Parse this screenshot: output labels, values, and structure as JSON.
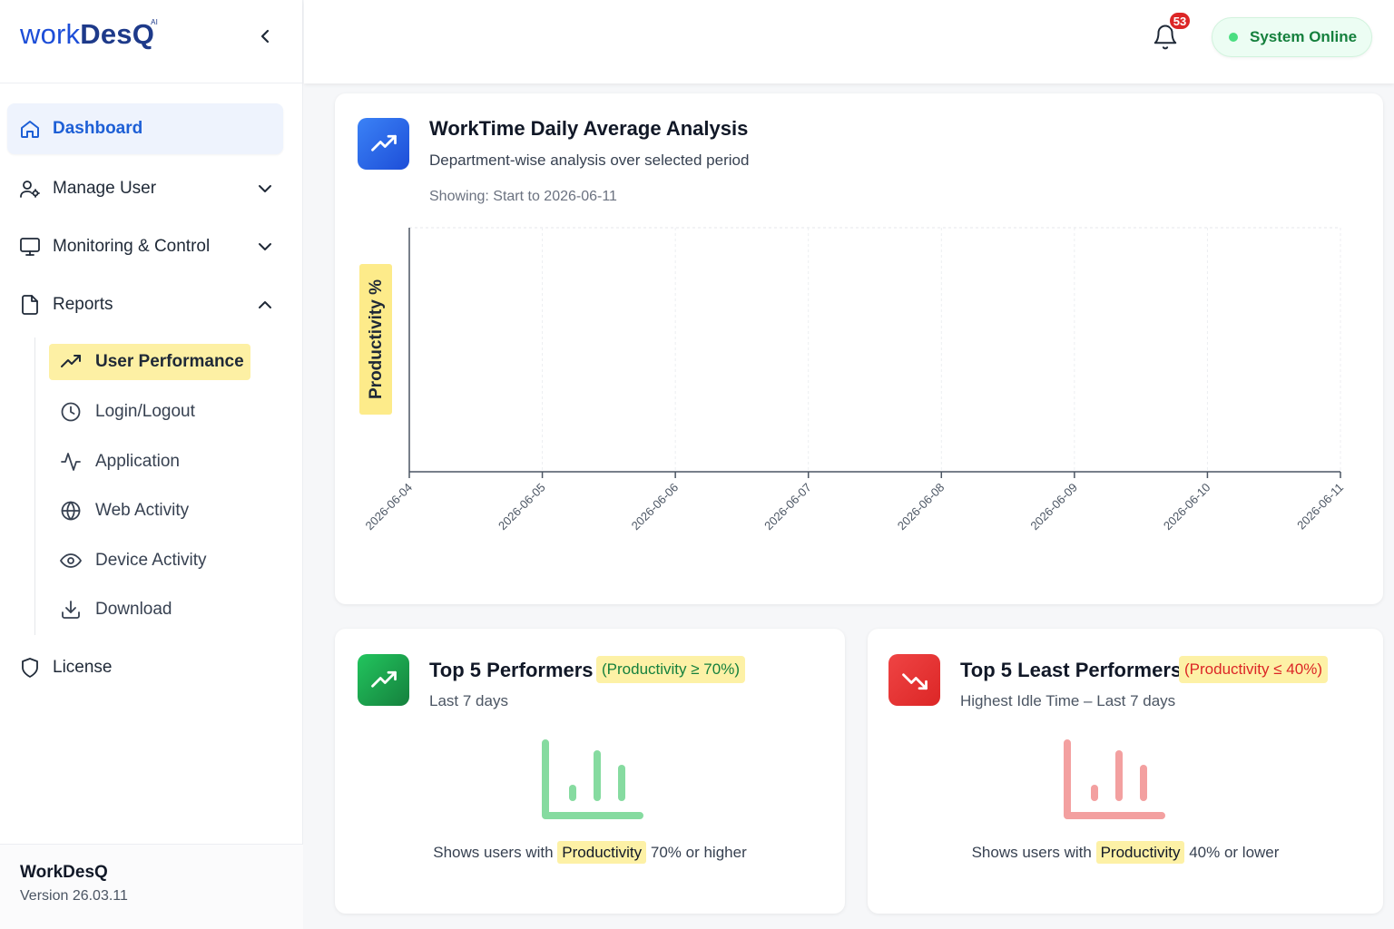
{
  "brand": {
    "logo_work": "work",
    "logo_desq": "DesQ",
    "logo_sup": "AI"
  },
  "nav": {
    "dashboard": "Dashboard",
    "manage_user": "Manage User",
    "monitoring": "Monitoring & Control",
    "reports": "Reports",
    "license": "License"
  },
  "reports_sub": [
    "User Performance",
    "Login/Logout",
    "Application",
    "Web Activity",
    "Device Activity",
    "Download"
  ],
  "footer": {
    "app_name": "WorkDesQ",
    "version": "Version 26.03.11"
  },
  "topbar": {
    "notification_count": "53",
    "status": "System Online"
  },
  "analysis": {
    "title": "WorkTime Daily Average Analysis",
    "subtitle": "Department-wise analysis over selected period",
    "showing": "Showing: Start to 2026-06-11"
  },
  "chart_data": {
    "type": "line",
    "title": "WorkTime Daily Average Analysis",
    "ylabel": "Productivity %",
    "xlabel": "",
    "categories": [
      "2026-06-04",
      "2026-06-05",
      "2026-06-06",
      "2026-06-07",
      "2026-06-08",
      "2026-06-09",
      "2026-06-10",
      "2026-06-11"
    ],
    "series": [],
    "grid": true
  },
  "top_performers": {
    "title": "Top 5 Performers",
    "pill": "(Productivity ≥ 70%)",
    "sub": "Last 7 days",
    "caption_pre": "Shows users with",
    "caption_hl": "Productivity",
    "caption_post": "70% or higher"
  },
  "least_performers": {
    "title": "Top 5 Least Performers",
    "pill": "(Productivity ≤ 40%)",
    "sub": "Highest Idle Time – Last 7 days",
    "caption_pre": "Shows users with",
    "caption_hl": "Productivity",
    "caption_post": "40% or lower"
  },
  "colors": {
    "accent_blue": "#1d5fd6",
    "success_green": "#16a34a",
    "danger_red": "#dc2626",
    "highlight_yellow": "#fdf1a6"
  }
}
